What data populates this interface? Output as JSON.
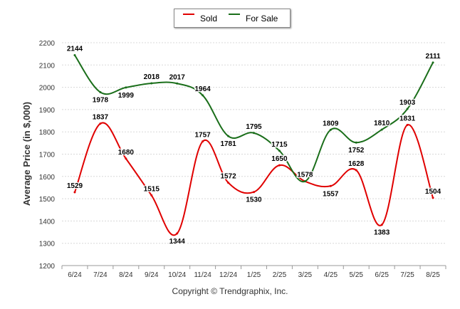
{
  "chart_data": {
    "type": "line",
    "categories": [
      "6/24",
      "7/24",
      "8/24",
      "9/24",
      "10/24",
      "11/24",
      "12/24",
      "1/25",
      "2/25",
      "3/25",
      "4/25",
      "5/25",
      "6/25",
      "7/25",
      "8/25"
    ],
    "series": [
      {
        "name": "Sold",
        "color": "#e00000",
        "values": [
          1529,
          1837,
          1680,
          1515,
          1344,
          1757,
          1572,
          1530,
          1650,
          1578,
          1557,
          1628,
          1383,
          1831,
          1504
        ]
      },
      {
        "name": "For Sale",
        "color": "#1a6e1a",
        "values": [
          2144,
          1978,
          1999,
          2018,
          2017,
          1964,
          1781,
          1795,
          1715,
          1578,
          1809,
          1752,
          1810,
          1903,
          2111
        ]
      }
    ],
    "ylabel": "Average Price (in $,000)",
    "ylim": [
      1200,
      2200
    ],
    "yticks": [
      1200,
      1300,
      1400,
      1500,
      1600,
      1700,
      1800,
      1900,
      2000,
      2100,
      2200
    ],
    "grid": true,
    "legend_position": "top-center"
  },
  "footer": {
    "copyright": "Copyright © Trendgraphix, Inc."
  }
}
